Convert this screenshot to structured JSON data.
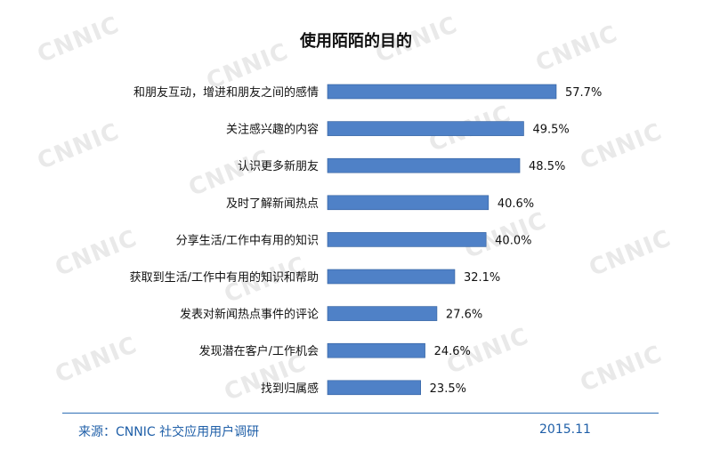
{
  "chart_data": {
    "type": "bar",
    "orientation": "horizontal",
    "title": "使用陌陌的目的",
    "categories": [
      "和朋友互动，增进和朋友之间的感情",
      "关注感兴趣的内容",
      "认识更多新朋友",
      "及时了解新闻热点",
      "分享生活/工作中有用的知识",
      "获取到生活/工作中有用的知识和帮助",
      "发表对新闻热点事件的评论",
      "发现潜在客户/工作机会",
      "找到归属感"
    ],
    "values": [
      57.7,
      49.5,
      48.5,
      40.6,
      40.0,
      32.1,
      27.6,
      24.6,
      23.5
    ],
    "value_labels": [
      "57.7%",
      "49.5%",
      "48.5%",
      "40.6%",
      "40.0%",
      "32.1%",
      "27.6%",
      "24.6%",
      "23.5%"
    ],
    "xlim": [
      0,
      57.7
    ],
    "grid": false,
    "legend": "none",
    "bar_color": "#4f81c7"
  },
  "footer": {
    "source": "来源：CNNIC 社交应用用户调研",
    "date": "2015.11"
  },
  "watermark": "CNNIC"
}
